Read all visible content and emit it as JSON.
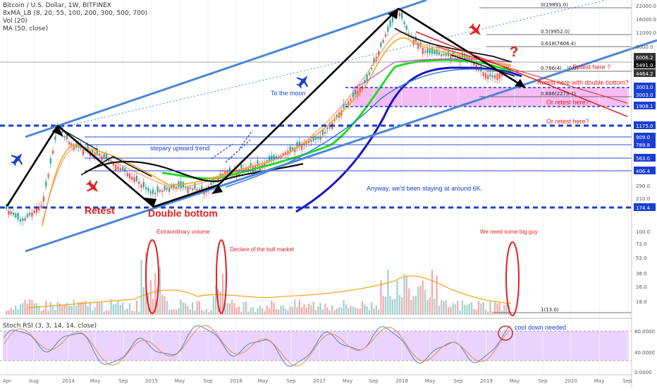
{
  "header": {
    "title": "Bitcoin / U.S. Dollar, 1W, BITFINEX",
    "ema_legend": "8xMA_LB (8, 20, 55, 100, 200, 300, 500, 700)",
    "vol_legend": "Vol (20)",
    "ma_legend": "MA (50, close)"
  },
  "stoch": {
    "legend": "Stoch RSI (3, 3, 14, 14, close)",
    "ticks": [
      "80.0000",
      "40.0000",
      "0.0000"
    ]
  },
  "price_axis": {
    "ticks": [
      "22000.0",
      "16000.0",
      "11000.0",
      "8000.0",
      "6006.2",
      "5491.0",
      "4464.2",
      "3003.0",
      "3003.0",
      "1908.1",
      "1175.0",
      "909.0",
      "789.8",
      "563.0",
      "406.4",
      "290.0",
      "210.0",
      "174.4",
      "100.0",
      "72.0",
      "52.0",
      "36.0",
      "26.0",
      "18.0"
    ]
  },
  "time_axis": {
    "ticks": [
      "Apr",
      "Aug",
      "2014",
      "May",
      "Sep",
      "2015",
      "May",
      "Sep",
      "2016",
      "May",
      "Sep",
      "2017",
      "May",
      "Sep",
      "2018",
      "May",
      "Sep",
      "2019",
      "May",
      "Sep",
      "2020",
      "May",
      "Sep"
    ]
  },
  "fib_labels": [
    "0(19891.0)",
    "0.5(9952.0)",
    "0.618(7606.4)",
    "0.786(4(…)0.5)",
    "0.886(2279.1)",
    "1(13.0)"
  ],
  "annotations": {
    "retest": "Retest",
    "double_bottom": "Double bottom",
    "stepary": "stepary upward trend",
    "to_the_moon": "To the moon",
    "anyway": "Anyway, we'd been staying at around 6K.",
    "retest_here": "Retest here ?",
    "retest_double": "Retest here with double bottom?",
    "or_retest_1": "Or retest here?",
    "or_retest_2": "Or retest here?",
    "extraordinary_volume": "Extraordinary volume",
    "declare_bull": "Declare of the bull market",
    "need_big_guy": "We need some big guy",
    "cool_down": "cool down needed",
    "question_mark": "?"
  },
  "colors": {
    "channel": "#4a86d9",
    "red_annot": "#e02020",
    "blue_annot": "#1a3fd0",
    "fib_pink": "#f3a6f0",
    "stoch_band": "#e6ccff",
    "ema_green": "#22dd22",
    "ema_orange": "#f5a623",
    "ema_dark_blue": "#1616c0",
    "candle_up": "#26a69a",
    "candle_down": "#ef5350"
  },
  "chart_data": {
    "type": "candlestick",
    "title": "Bitcoin / U.S. Dollar, 1W, BITFINEX",
    "y_scale": "log",
    "ylim": [
      13,
      22000
    ],
    "x": [
      "Apr 2013",
      "Aug 2013",
      "Dec 2013",
      "Apr 2014",
      "Aug 2014",
      "Jan 2015",
      "Aug 2015",
      "Jan 2016",
      "Jun 2016",
      "Jan 2017",
      "Jun 2017",
      "Sep 2017",
      "Dec 2017",
      "Feb 2018",
      "Jun 2018",
      "Nov 2018",
      "Dec 2018",
      "Feb 2019",
      "Apr 2019"
    ],
    "series": [
      {
        "values": [
          120,
          100,
          1100,
          500,
          480,
          200,
          230,
          420,
          650,
          950,
          2600,
          4000,
          19000,
          8000,
          6500,
          5500,
          3300,
          3600,
          5491
        ]
      }
    ],
    "levels": [
      19891,
      9952,
      7606.4,
      6006.2,
      5491,
      4464.2,
      3003,
      2279.1,
      1908.1,
      1175,
      909,
      789.8,
      563,
      406.4,
      174.4,
      13
    ],
    "stoch_rsi_levels": [
      80,
      40,
      0
    ]
  }
}
